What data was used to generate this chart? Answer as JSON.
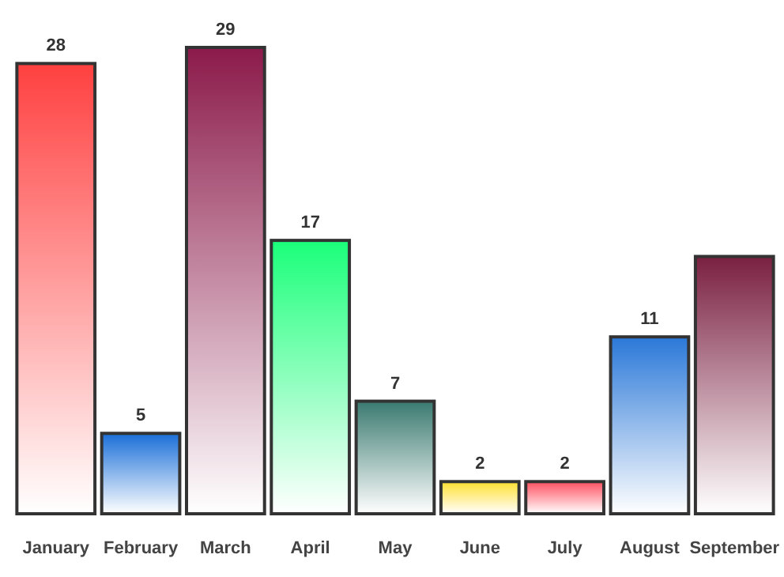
{
  "chart_data": {
    "type": "bar",
    "categories": [
      "January",
      "February",
      "March",
      "April",
      "May",
      "June",
      "July",
      "August",
      "September"
    ],
    "values": [
      28,
      5,
      29,
      17,
      7,
      2,
      2,
      11,
      16
    ],
    "colors": [
      "#ff4040",
      "#1a6fd8",
      "#8b1a4a",
      "#1aff7a",
      "#3a7a70",
      "#ffe030",
      "#ff5060",
      "#2a78d8",
      "#7a2040"
    ],
    "value_labels": [
      "28",
      "5",
      "29",
      "17",
      "7",
      "2",
      "2",
      "11",
      null
    ]
  }
}
